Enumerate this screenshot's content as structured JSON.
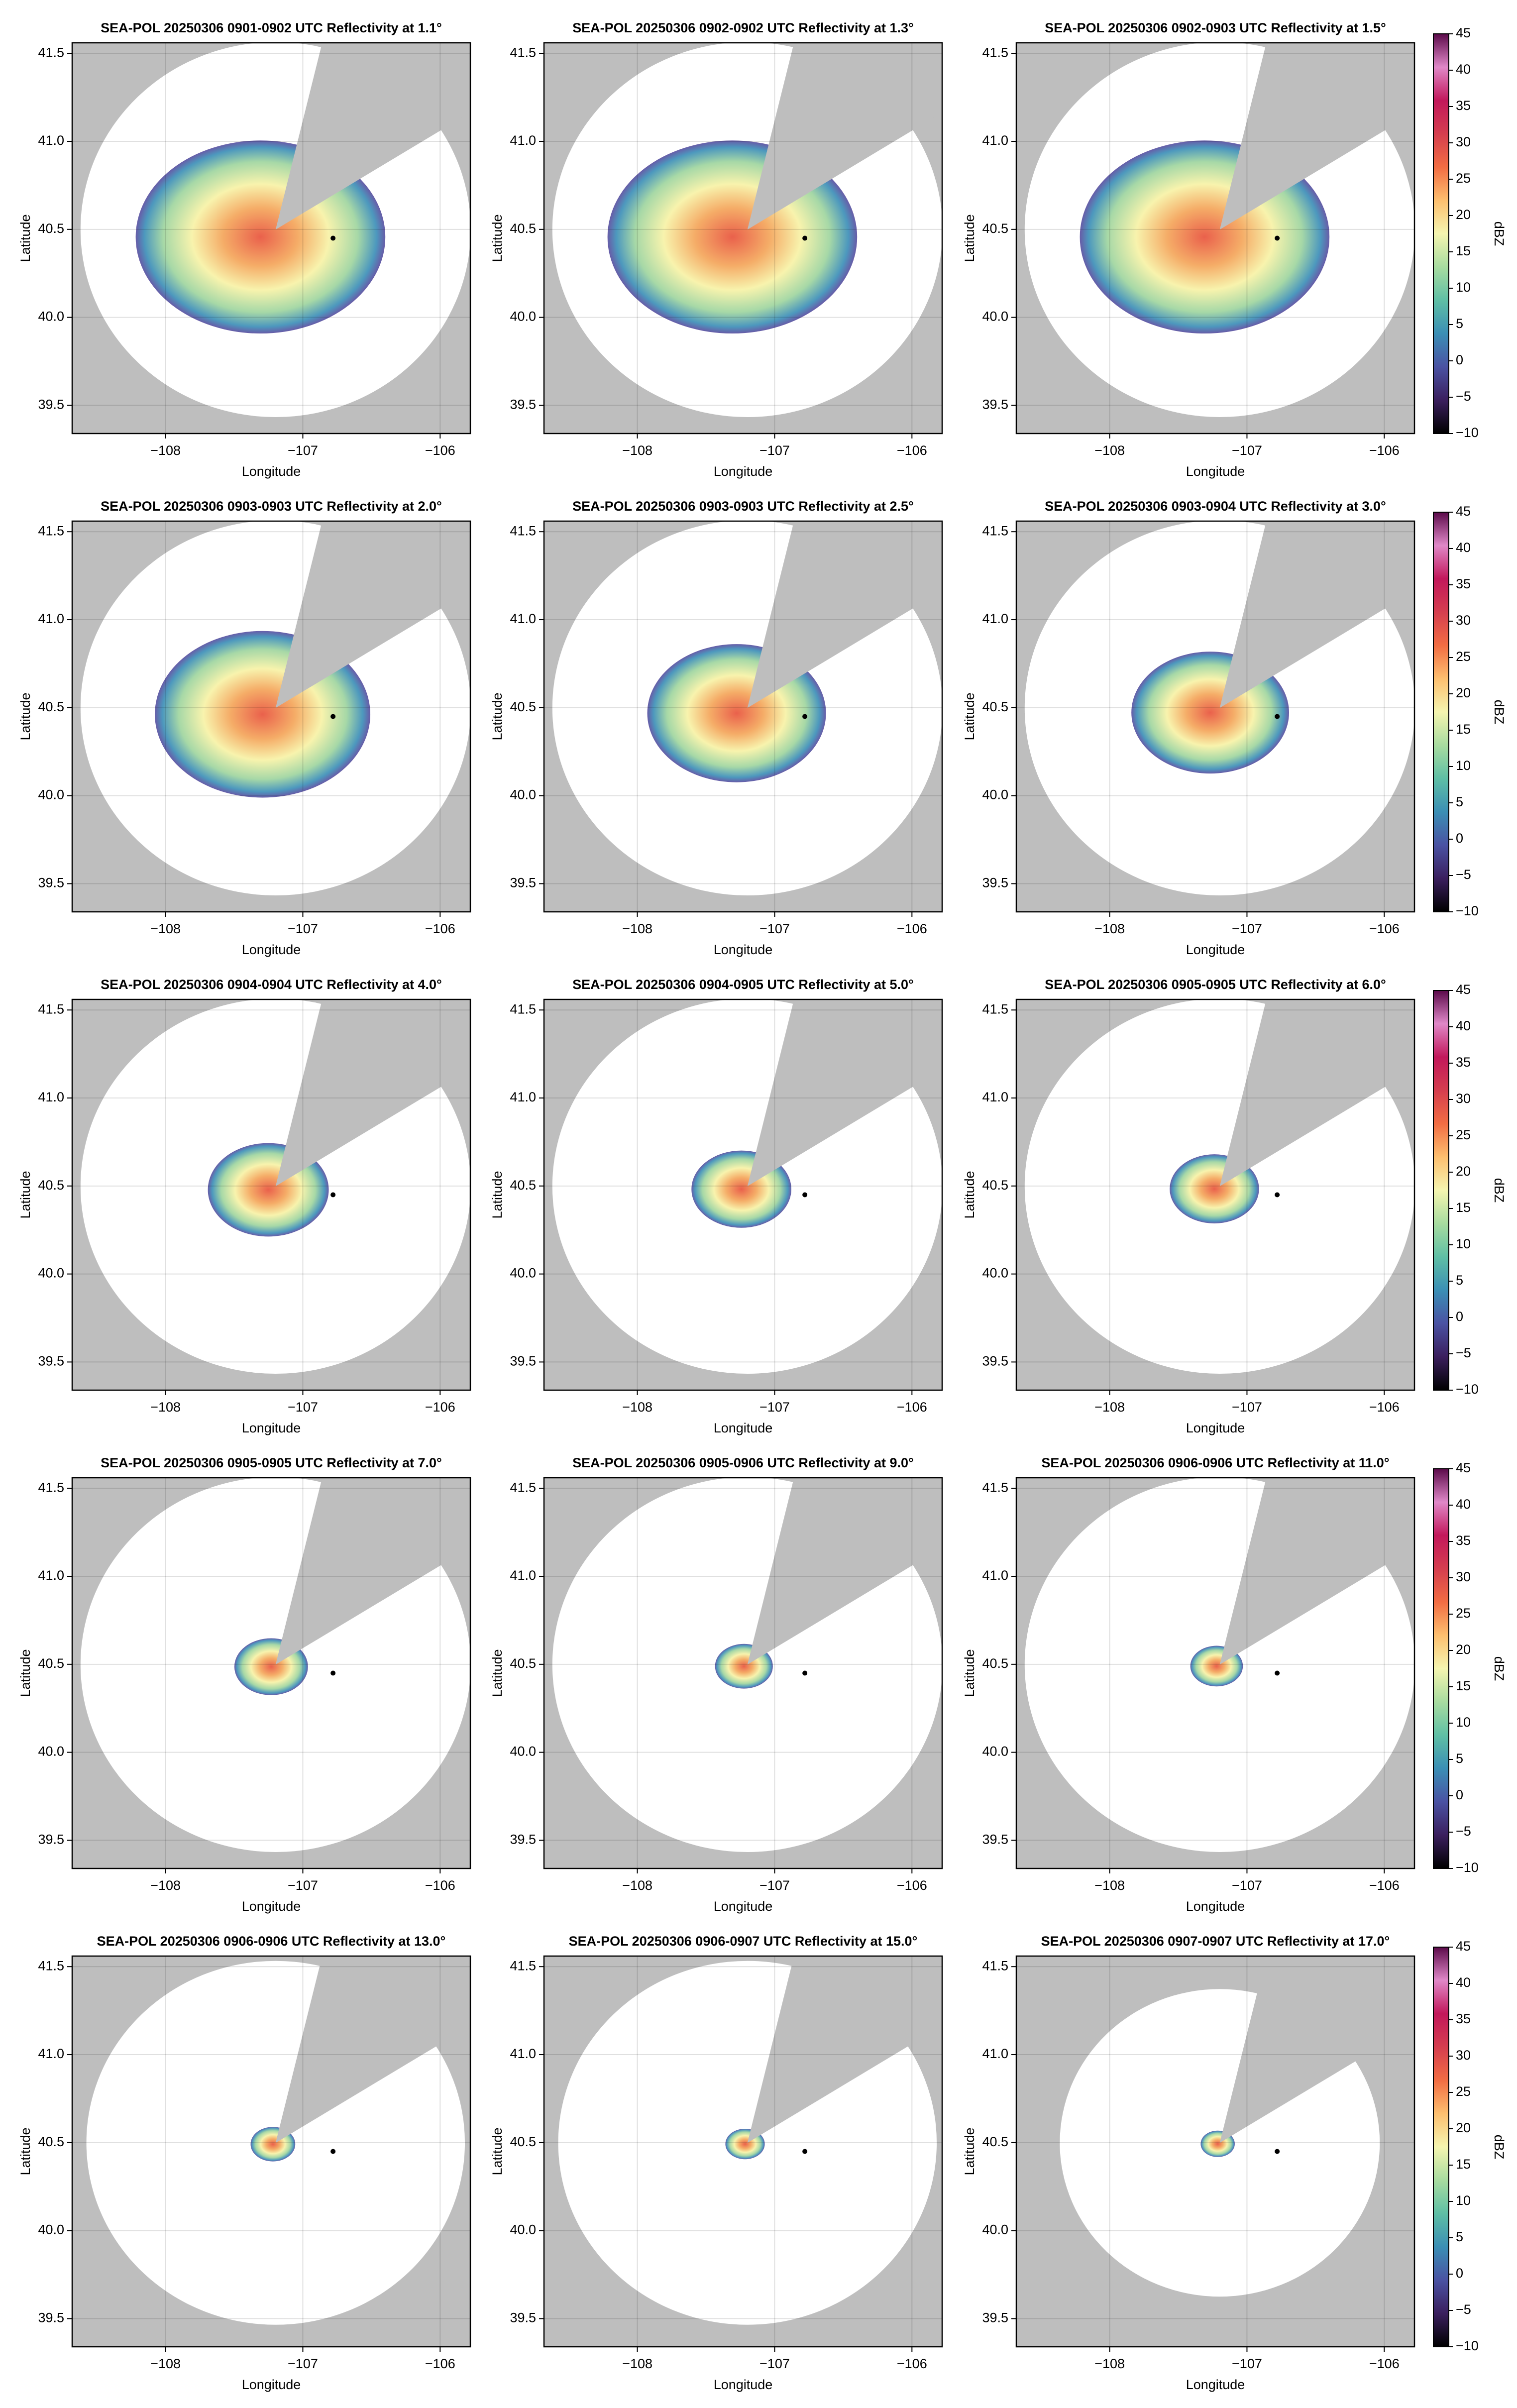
{
  "chart_data": [
    {
      "type": "radar-ppi",
      "title": "SEA-POL 20250306 0901-0902 UTC Reflectivity at 1.1°",
      "xlabel": "Longitude",
      "ylabel": "Latitude",
      "xlim": [
        -108.68,
        -105.78
      ],
      "ylim": [
        39.34,
        41.56
      ],
      "xticks": [
        {
          "value": -108,
          "label": "−108"
        },
        {
          "value": -107,
          "label": "−107"
        },
        {
          "value": -106,
          "label": "−106"
        }
      ],
      "yticks": [
        39.5,
        {
          "value": 40,
          "label": "40.0"
        },
        40.5,
        {
          "value": 41,
          "label": "41.0"
        },
        41.5
      ],
      "grid": true,
      "marker": {
        "x": -106.78,
        "y": 40.45
      }
    },
    {
      "type": "radar-ppi",
      "title": "SEA-POL 20250306 0902-0902 UTC Reflectivity at 1.3°",
      "xlabel": "Longitude",
      "ylabel": "Latitude",
      "xlim": [
        -108.68,
        -105.78
      ],
      "ylim": [
        39.34,
        41.56
      ],
      "xticks": [
        {
          "value": -108,
          "label": "−108"
        },
        {
          "value": -107,
          "label": "−107"
        },
        {
          "value": -106,
          "label": "−106"
        }
      ],
      "yticks": [
        39.5,
        {
          "value": 40,
          "label": "40.0"
        },
        40.5,
        {
          "value": 41,
          "label": "41.0"
        },
        41.5
      ],
      "grid": true,
      "marker": {
        "x": -106.78,
        "y": 40.45
      }
    },
    {
      "type": "radar-ppi",
      "title": "SEA-POL 20250306 0902-0903 UTC Reflectivity at 1.5°",
      "xlabel": "Longitude",
      "ylabel": "Latitude",
      "xlim": [
        -108.68,
        -105.78
      ],
      "ylim": [
        39.34,
        41.56
      ],
      "xticks": [
        {
          "value": -108,
          "label": "−108"
        },
        {
          "value": -107,
          "label": "−107"
        },
        {
          "value": -106,
          "label": "−106"
        }
      ],
      "yticks": [
        39.5,
        {
          "value": 40,
          "label": "40.0"
        },
        40.5,
        {
          "value": 41,
          "label": "41.0"
        },
        41.5
      ],
      "grid": true,
      "marker": {
        "x": -106.78,
        "y": 40.45
      },
      "colorbar": {
        "label": "dBZ",
        "clim": [
          -10,
          45
        ],
        "cticks": [
          {
            "value": -10,
            "label": "−10"
          },
          {
            "value": -5,
            "label": "−5"
          },
          0,
          5,
          10,
          15,
          20,
          25,
          30,
          35,
          40,
          45
        ],
        "colormap": [
          "#000000",
          "#3b1f5e",
          "#4a52a3",
          "#3b8fb5",
          "#5fbfa5",
          "#a8dca0",
          "#f5f5b0",
          "#fdbf6f",
          "#f26d43",
          "#d53e4f",
          "#c2185b",
          "#e088c8",
          "#5b0a4a"
        ]
      }
    },
    {
      "type": "radar-ppi",
      "title": "SEA-POL 20250306 0903-0903 UTC Reflectivity at 2.0°",
      "xlabel": "Longitude",
      "ylabel": "Latitude",
      "xlim": [
        -108.68,
        -105.78
      ],
      "ylim": [
        39.34,
        41.56
      ],
      "xticks": [
        {
          "value": -108,
          "label": "−108"
        },
        {
          "value": -107,
          "label": "−107"
        },
        {
          "value": -106,
          "label": "−106"
        }
      ],
      "yticks": [
        39.5,
        {
          "value": 40,
          "label": "40.0"
        },
        40.5,
        {
          "value": 41,
          "label": "41.0"
        },
        41.5
      ],
      "grid": true,
      "marker": {
        "x": -106.78,
        "y": 40.45
      }
    },
    {
      "type": "radar-ppi",
      "title": "SEA-POL 20250306 0903-0903 UTC Reflectivity at 2.5°",
      "xlabel": "Longitude",
      "ylabel": "Latitude",
      "xlim": [
        -108.68,
        -105.78
      ],
      "ylim": [
        39.34,
        41.56
      ],
      "xticks": [
        {
          "value": -108,
          "label": "−108"
        },
        {
          "value": -107,
          "label": "−107"
        },
        {
          "value": -106,
          "label": "−106"
        }
      ],
      "yticks": [
        39.5,
        {
          "value": 40,
          "label": "40.0"
        },
        40.5,
        {
          "value": 41,
          "label": "41.0"
        },
        41.5
      ],
      "grid": true,
      "marker": {
        "x": -106.78,
        "y": 40.45
      }
    },
    {
      "type": "radar-ppi",
      "title": "SEA-POL 20250306 0903-0904 UTC Reflectivity at 3.0°",
      "xlabel": "Longitude",
      "ylabel": "Latitude",
      "xlim": [
        -108.68,
        -105.78
      ],
      "ylim": [
        39.34,
        41.56
      ],
      "xticks": [
        {
          "value": -108,
          "label": "−108"
        },
        {
          "value": -107,
          "label": "−107"
        },
        {
          "value": -106,
          "label": "−106"
        }
      ],
      "yticks": [
        39.5,
        {
          "value": 40,
          "label": "40.0"
        },
        40.5,
        {
          "value": 41,
          "label": "41.0"
        },
        41.5
      ],
      "grid": true,
      "marker": {
        "x": -106.78,
        "y": 40.45
      },
      "colorbar": {
        "label": "dBZ",
        "clim": [
          -10,
          45
        ],
        "cticks": [
          {
            "value": -10,
            "label": "−10"
          },
          {
            "value": -5,
            "label": "−5"
          },
          0,
          5,
          10,
          15,
          20,
          25,
          30,
          35,
          40,
          45
        ],
        "colormap": [
          "#000000",
          "#3b1f5e",
          "#4a52a3",
          "#3b8fb5",
          "#5fbfa5",
          "#a8dca0",
          "#f5f5b0",
          "#fdbf6f",
          "#f26d43",
          "#d53e4f",
          "#c2185b",
          "#e088c8",
          "#5b0a4a"
        ]
      }
    },
    {
      "type": "radar-ppi",
      "title": "SEA-POL 20250306 0904-0904 UTC Reflectivity at 4.0°",
      "xlabel": "Longitude",
      "ylabel": "Latitude",
      "xlim": [
        -108.68,
        -105.78
      ],
      "ylim": [
        39.34,
        41.56
      ],
      "xticks": [
        {
          "value": -108,
          "label": "−108"
        },
        {
          "value": -107,
          "label": "−107"
        },
        {
          "value": -106,
          "label": "−106"
        }
      ],
      "yticks": [
        39.5,
        {
          "value": 40,
          "label": "40.0"
        },
        40.5,
        {
          "value": 41,
          "label": "41.0"
        },
        41.5
      ],
      "grid": true,
      "marker": {
        "x": -106.78,
        "y": 40.45
      }
    },
    {
      "type": "radar-ppi",
      "title": "SEA-POL 20250306 0904-0905 UTC Reflectivity at 5.0°",
      "xlabel": "Longitude",
      "ylabel": "Latitude",
      "xlim": [
        -108.68,
        -105.78
      ],
      "ylim": [
        39.34,
        41.56
      ],
      "xticks": [
        {
          "value": -108,
          "label": "−108"
        },
        {
          "value": -107,
          "label": "−107"
        },
        {
          "value": -106,
          "label": "−106"
        }
      ],
      "yticks": [
        39.5,
        {
          "value": 40,
          "label": "40.0"
        },
        40.5,
        {
          "value": 41,
          "label": "41.0"
        },
        41.5
      ],
      "grid": true,
      "marker": {
        "x": -106.78,
        "y": 40.45
      }
    },
    {
      "type": "radar-ppi",
      "title": "SEA-POL 20250306 0905-0905 UTC Reflectivity at 6.0°",
      "xlabel": "Longitude",
      "ylabel": "Latitude",
      "xlim": [
        -108.68,
        -105.78
      ],
      "ylim": [
        39.34,
        41.56
      ],
      "xticks": [
        {
          "value": -108,
          "label": "−108"
        },
        {
          "value": -107,
          "label": "−107"
        },
        {
          "value": -106,
          "label": "−106"
        }
      ],
      "yticks": [
        39.5,
        {
          "value": 40,
          "label": "40.0"
        },
        40.5,
        {
          "value": 41,
          "label": "41.0"
        },
        41.5
      ],
      "grid": true,
      "marker": {
        "x": -106.78,
        "y": 40.45
      },
      "colorbar": {
        "label": "dBZ",
        "clim": [
          -10,
          45
        ],
        "cticks": [
          {
            "value": -10,
            "label": "−10"
          },
          {
            "value": -5,
            "label": "−5"
          },
          0,
          5,
          10,
          15,
          20,
          25,
          30,
          35,
          40,
          45
        ],
        "colormap": [
          "#000000",
          "#3b1f5e",
          "#4a52a3",
          "#3b8fb5",
          "#5fbfa5",
          "#a8dca0",
          "#f5f5b0",
          "#fdbf6f",
          "#f26d43",
          "#d53e4f",
          "#c2185b",
          "#e088c8",
          "#5b0a4a"
        ]
      }
    },
    {
      "type": "radar-ppi",
      "title": "SEA-POL 20250306 0905-0905 UTC Reflectivity at 7.0°",
      "xlabel": "Longitude",
      "ylabel": "Latitude",
      "xlim": [
        -108.68,
        -105.78
      ],
      "ylim": [
        39.34,
        41.56
      ],
      "xticks": [
        {
          "value": -108,
          "label": "−108"
        },
        {
          "value": -107,
          "label": "−107"
        },
        {
          "value": -106,
          "label": "−106"
        }
      ],
      "yticks": [
        39.5,
        {
          "value": 40,
          "label": "40.0"
        },
        40.5,
        {
          "value": 41,
          "label": "41.0"
        },
        41.5
      ],
      "grid": true,
      "marker": {
        "x": -106.78,
        "y": 40.45
      }
    },
    {
      "type": "radar-ppi",
      "title": "SEA-POL 20250306 0905-0906 UTC Reflectivity at 9.0°",
      "xlabel": "Longitude",
      "ylabel": "Latitude",
      "xlim": [
        -108.68,
        -105.78
      ],
      "ylim": [
        39.34,
        41.56
      ],
      "xticks": [
        {
          "value": -108,
          "label": "−108"
        },
        {
          "value": -107,
          "label": "−107"
        },
        {
          "value": -106,
          "label": "−106"
        }
      ],
      "yticks": [
        39.5,
        {
          "value": 40,
          "label": "40.0"
        },
        40.5,
        {
          "value": 41,
          "label": "41.0"
        },
        41.5
      ],
      "grid": true,
      "marker": {
        "x": -106.78,
        "y": 40.45
      }
    },
    {
      "type": "radar-ppi",
      "title": "SEA-POL 20250306 0906-0906 UTC Reflectivity at 11.0°",
      "xlabel": "Longitude",
      "ylabel": "Latitude",
      "xlim": [
        -108.68,
        -105.78
      ],
      "ylim": [
        39.34,
        41.56
      ],
      "xticks": [
        {
          "value": -108,
          "label": "−108"
        },
        {
          "value": -107,
          "label": "−107"
        },
        {
          "value": -106,
          "label": "−106"
        }
      ],
      "yticks": [
        39.5,
        {
          "value": 40,
          "label": "40.0"
        },
        40.5,
        {
          "value": 41,
          "label": "41.0"
        },
        41.5
      ],
      "grid": true,
      "marker": {
        "x": -106.78,
        "y": 40.45
      },
      "colorbar": {
        "label": "dBZ",
        "clim": [
          -10,
          45
        ],
        "cticks": [
          {
            "value": -10,
            "label": "−10"
          },
          {
            "value": -5,
            "label": "−5"
          },
          0,
          5,
          10,
          15,
          20,
          25,
          30,
          35,
          40,
          45
        ],
        "colormap": [
          "#000000",
          "#3b1f5e",
          "#4a52a3",
          "#3b8fb5",
          "#5fbfa5",
          "#a8dca0",
          "#f5f5b0",
          "#fdbf6f",
          "#f26d43",
          "#d53e4f",
          "#c2185b",
          "#e088c8",
          "#5b0a4a"
        ]
      }
    },
    {
      "type": "radar-ppi",
      "title": "SEA-POL 20250306 0906-0906 UTC Reflectivity at 13.0°",
      "xlabel": "Longitude",
      "ylabel": "Latitude",
      "xlim": [
        -108.68,
        -105.78
      ],
      "ylim": [
        39.34,
        41.56
      ],
      "xticks": [
        {
          "value": -108,
          "label": "−108"
        },
        {
          "value": -107,
          "label": "−107"
        },
        {
          "value": -106,
          "label": "−106"
        }
      ],
      "yticks": [
        39.5,
        {
          "value": 40,
          "label": "40.0"
        },
        40.5,
        {
          "value": 41,
          "label": "41.0"
        },
        41.5
      ],
      "grid": true,
      "marker": {
        "x": -106.78,
        "y": 40.45
      }
    },
    {
      "type": "radar-ppi",
      "title": "SEA-POL 20250306 0906-0907 UTC Reflectivity at 15.0°",
      "xlabel": "Longitude",
      "ylabel": "Latitude",
      "xlim": [
        -108.68,
        -105.78
      ],
      "ylim": [
        39.34,
        41.56
      ],
      "xticks": [
        {
          "value": -108,
          "label": "−108"
        },
        {
          "value": -107,
          "label": "−107"
        },
        {
          "value": -106,
          "label": "−106"
        }
      ],
      "yticks": [
        39.5,
        {
          "value": 40,
          "label": "40.0"
        },
        40.5,
        {
          "value": 41,
          "label": "41.0"
        },
        41.5
      ],
      "grid": true,
      "marker": {
        "x": -106.78,
        "y": 40.45
      }
    },
    {
      "type": "radar-ppi",
      "title": "SEA-POL 20250306 0907-0907 UTC Reflectivity at 17.0°",
      "xlabel": "Longitude",
      "ylabel": "Latitude",
      "xlim": [
        -108.68,
        -105.78
      ],
      "ylim": [
        39.34,
        41.56
      ],
      "xticks": [
        {
          "value": -108,
          "label": "−108"
        },
        {
          "value": -107,
          "label": "−107"
        },
        {
          "value": -106,
          "label": "−106"
        }
      ],
      "yticks": [
        39.5,
        {
          "value": 40,
          "label": "40.0"
        },
        40.5,
        {
          "value": 41,
          "label": "41.0"
        },
        41.5
      ],
      "grid": true,
      "marker": {
        "x": -106.78,
        "y": 40.45
      },
      "colorbar": {
        "label": "dBZ",
        "clim": [
          -10,
          45
        ],
        "cticks": [
          {
            "value": -10,
            "label": "−10"
          },
          {
            "value": -5,
            "label": "−5"
          },
          0,
          5,
          10,
          15,
          20,
          25,
          30,
          35,
          40,
          45
        ],
        "colormap": [
          "#000000",
          "#3b1f5e",
          "#4a52a3",
          "#3b8fb5",
          "#5fbfa5",
          "#a8dca0",
          "#f5f5b0",
          "#fdbf6f",
          "#f26d43",
          "#d53e4f",
          "#c2185b",
          "#e088c8",
          "#5b0a4a"
        ]
      }
    }
  ]
}
